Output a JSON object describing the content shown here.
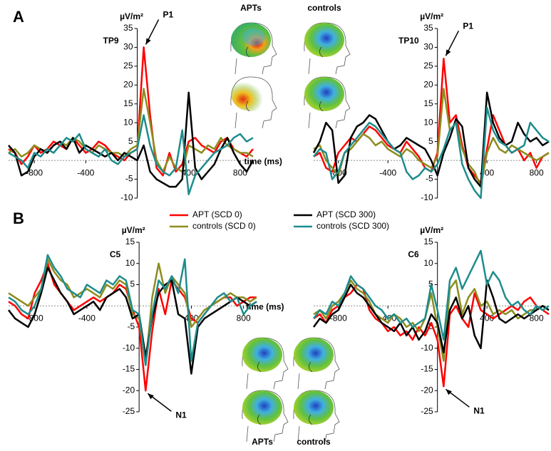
{
  "chart_data": [
    {
      "type": "line",
      "panel": "A",
      "channel": "TP9",
      "ylabel": "µV/m²",
      "xlabel": "time (ms)",
      "annotation": "P1",
      "x": [
        -1000,
        -950,
        -900,
        -850,
        -800,
        -750,
        -700,
        -650,
        -600,
        -550,
        -500,
        -450,
        -400,
        -350,
        -300,
        -250,
        -200,
        -150,
        -100,
        -50,
        0,
        50,
        100,
        150,
        200,
        250,
        300,
        350,
        400,
        450,
        500,
        550,
        600,
        650,
        700,
        750,
        800,
        850,
        900
      ],
      "xlim": [
        -1000,
        900
      ],
      "xticks": [
        -800,
        -400,
        400,
        800
      ],
      "ylim": [
        -10,
        35
      ],
      "yticks": [
        -10,
        -5,
        5,
        10,
        15,
        20,
        25,
        30,
        35
      ],
      "series": [
        {
          "color": "#ff0000",
          "values": [
            3,
            2,
            -1,
            1,
            4,
            2,
            3,
            5,
            4,
            3,
            6,
            4,
            2,
            3,
            5,
            4,
            2,
            1,
            0,
            2,
            3,
            30,
            12,
            -2,
            -4,
            2,
            -3,
            -1,
            5,
            6,
            4,
            3,
            2,
            5,
            6,
            3,
            2,
            1,
            3
          ]
        },
        {
          "color": "#8c8c1e",
          "values": [
            2,
            3,
            1,
            2,
            4,
            3,
            2,
            4,
            5,
            4,
            6,
            5,
            3,
            2,
            4,
            3,
            2,
            2,
            1,
            3,
            4,
            19,
            10,
            0,
            -3,
            1,
            -2,
            -3,
            4,
            3,
            2,
            4,
            3,
            6,
            4,
            3,
            2,
            2,
            1
          ]
        },
        {
          "color": "#000000",
          "values": [
            4,
            2,
            -4,
            -3,
            1,
            3,
            2,
            4,
            5,
            3,
            6,
            2,
            4,
            3,
            2,
            1,
            2,
            0,
            2,
            1,
            0,
            4,
            -3,
            -5,
            -6,
            -7,
            -7,
            -5,
            18,
            -2,
            -5,
            -3,
            -1,
            3,
            6,
            2,
            -1,
            -3,
            0
          ]
        },
        {
          "color": "#1e8c8c",
          "values": [
            2,
            1,
            0,
            -2,
            2,
            1,
            3,
            2,
            4,
            6,
            5,
            7,
            3,
            2,
            1,
            3,
            0,
            -1,
            1,
            2,
            3,
            12,
            4,
            -1,
            -3,
            -4,
            -2,
            8,
            -9,
            -4,
            -2,
            0,
            2,
            3,
            4,
            6,
            7,
            5,
            6
          ]
        }
      ]
    },
    {
      "type": "line",
      "channel": "TP10",
      "ylabel": "µV/m²",
      "annotation": "P1",
      "x": [
        -1000,
        -950,
        -900,
        -850,
        -800,
        -750,
        -700,
        -650,
        -600,
        -550,
        -500,
        -450,
        -400,
        -350,
        -300,
        -250,
        -200,
        -150,
        -100,
        -50,
        0,
        50,
        100,
        150,
        200,
        250,
        300,
        350,
        400,
        450,
        500,
        550,
        600,
        650,
        700,
        750,
        800,
        850,
        900
      ],
      "xlim": [
        -1000,
        900
      ],
      "xticks": [
        -800,
        -400,
        400,
        800
      ],
      "ylim": [
        -10,
        35
      ],
      "yticks": [
        -10,
        -5,
        5,
        10,
        15,
        20,
        25,
        30,
        35
      ],
      "series": [
        {
          "color": "#ff0000",
          "values": [
            1,
            2,
            -2,
            -3,
            2,
            4,
            6,
            5,
            7,
            9,
            8,
            6,
            4,
            3,
            2,
            5,
            3,
            1,
            -2,
            -3,
            2,
            27,
            10,
            12,
            4,
            -2,
            -4,
            -6,
            3,
            12,
            8,
            4,
            2,
            3,
            0,
            2,
            -2,
            1,
            2
          ]
        },
        {
          "color": "#8c8c1e",
          "values": [
            3,
            4,
            0,
            -2,
            -4,
            2,
            3,
            5,
            7,
            6,
            4,
            5,
            3,
            2,
            1,
            3,
            2,
            0,
            -1,
            -2,
            1,
            19,
            8,
            10,
            3,
            -1,
            -3,
            -7,
            2,
            6,
            3,
            2,
            4,
            3,
            2,
            1,
            0,
            1,
            2
          ]
        },
        {
          "color": "#000000",
          "values": [
            2,
            5,
            10,
            8,
            -6,
            -4,
            6,
            9,
            10,
            12,
            11,
            8,
            5,
            3,
            4,
            6,
            5,
            4,
            3,
            0,
            -4,
            2,
            6,
            11,
            9,
            -2,
            -5,
            -7,
            18,
            10,
            6,
            4,
            5,
            10,
            7,
            5,
            6,
            4,
            5
          ]
        },
        {
          "color": "#1e8c8c",
          "values": [
            1,
            3,
            2,
            -5,
            -3,
            2,
            4,
            6,
            8,
            10,
            9,
            7,
            5,
            3,
            2,
            -3,
            -5,
            -4,
            -2,
            -3,
            -1,
            3,
            8,
            10,
            -1,
            -5,
            -8,
            -10,
            14,
            8,
            5,
            4,
            2,
            3,
            4,
            10,
            8,
            6,
            5
          ]
        }
      ]
    },
    {
      "type": "line",
      "panel": "B",
      "channel": "C5",
      "ylabel": "µV/m²",
      "xlabel": "time (ms)",
      "annotation": "N1",
      "x": [
        -1000,
        -950,
        -900,
        -850,
        -800,
        -750,
        -700,
        -650,
        -600,
        -550,
        -500,
        -450,
        -400,
        -350,
        -300,
        -250,
        -200,
        -150,
        -100,
        -50,
        0,
        50,
        100,
        150,
        200,
        250,
        300,
        350,
        400,
        450,
        500,
        550,
        600,
        650,
        700,
        750,
        800,
        850,
        900
      ],
      "xlim": [
        -1000,
        900
      ],
      "xticks": [
        -800,
        -400,
        400,
        800
      ],
      "ylim": [
        -25,
        15
      ],
      "yticks": [
        -25,
        -20,
        -15,
        -10,
        -5,
        5,
        10,
        15
      ],
      "series": [
        {
          "name": "APT (SCD 0)",
          "color": "#ff0000",
          "values": [
            1,
            0,
            -2,
            -3,
            3,
            6,
            10,
            5,
            3,
            1,
            -1,
            0,
            1,
            2,
            1,
            2,
            3,
            5,
            4,
            -1,
            -5,
            -20,
            -6,
            4,
            -2,
            6,
            4,
            2,
            -3,
            -4,
            -2,
            0,
            1,
            2,
            2,
            0,
            1,
            2,
            2
          ]
        },
        {
          "name": "controls (SCD 0)",
          "color": "#8c8c1e",
          "values": [
            3,
            2,
            1,
            0,
            2,
            4,
            11,
            8,
            6,
            5,
            2,
            3,
            4,
            3,
            2,
            5,
            4,
            6,
            5,
            -2,
            -3,
            -14,
            2,
            10,
            3,
            7,
            5,
            3,
            -5,
            -3,
            -1,
            0,
            1,
            2,
            3,
            2,
            2,
            1,
            2
          ]
        },
        {
          "name": "APT (SCD 300)",
          "color": "#000000",
          "values": [
            -1,
            -3,
            -4,
            -5,
            -2,
            3,
            9,
            6,
            3,
            1,
            -2,
            -1,
            0,
            1,
            -1,
            2,
            3,
            4,
            2,
            -3,
            -2,
            -12,
            -3,
            3,
            5,
            6,
            -2,
            -3,
            -16,
            -5,
            -3,
            -2,
            -1,
            0,
            1,
            2,
            1,
            0,
            1
          ]
        },
        {
          "name": "controls (SCD 300)",
          "color": "#1e8c8c",
          "values": [
            2,
            1,
            -1,
            -2,
            0,
            4,
            12,
            9,
            7,
            4,
            3,
            2,
            5,
            4,
            3,
            6,
            5,
            7,
            6,
            -1,
            -2,
            -14,
            -2,
            6,
            4,
            7,
            3,
            11,
            -13,
            -4,
            -2,
            0,
            2,
            3,
            1,
            2,
            -2,
            0,
            1
          ]
        }
      ]
    },
    {
      "type": "line",
      "channel": "C6",
      "ylabel": "µV/m²",
      "annotation": "N1",
      "x": [
        -1000,
        -950,
        -900,
        -850,
        -800,
        -750,
        -700,
        -650,
        -600,
        -550,
        -500,
        -450,
        -400,
        -350,
        -300,
        -250,
        -200,
        -150,
        -100,
        -50,
        0,
        50,
        100,
        150,
        200,
        250,
        300,
        350,
        400,
        450,
        500,
        550,
        600,
        650,
        700,
        750,
        800,
        850,
        900
      ],
      "xlim": [
        -1000,
        900
      ],
      "xticks": [
        -800,
        -400,
        400,
        800
      ],
      "ylim": [
        -25,
        15
      ],
      "yticks": [
        -25,
        -20,
        -15,
        -10,
        -5,
        5,
        10,
        15
      ],
      "series": [
        {
          "color": "#ff0000",
          "values": [
            -3,
            -2,
            -4,
            -1,
            0,
            2,
            3,
            5,
            4,
            -1,
            -3,
            -4,
            -6,
            -5,
            -7,
            -6,
            -8,
            -5,
            -7,
            -4,
            -8,
            -19,
            -2,
            0,
            -3,
            -5,
            3,
            -1,
            -2,
            -3,
            -2,
            -1,
            0,
            -1,
            1,
            2,
            0,
            -1,
            -2
          ]
        },
        {
          "color": "#8c8c1e",
          "values": [
            -2,
            -1,
            -3,
            0,
            1,
            3,
            6,
            4,
            3,
            1,
            -2,
            -3,
            -4,
            -2,
            -3,
            -5,
            -4,
            -6,
            -3,
            3,
            -5,
            -13,
            4,
            6,
            -2,
            2,
            4,
            0,
            1,
            -2,
            -1,
            -2,
            -1,
            -3,
            -2,
            -1,
            -1,
            0,
            -1
          ]
        },
        {
          "color": "#000000",
          "values": [
            -5,
            -3,
            -4,
            -2,
            -1,
            2,
            5,
            3,
            2,
            0,
            -2,
            -4,
            -5,
            -6,
            -4,
            -7,
            -5,
            -8,
            -6,
            -2,
            -4,
            -11,
            -1,
            2,
            -3,
            0,
            -7,
            -10,
            6,
            2,
            -3,
            -4,
            -3,
            -2,
            -3,
            -2,
            -1,
            0,
            -1
          ]
        },
        {
          "color": "#1e8c8c",
          "values": [
            -3,
            -1,
            -2,
            1,
            0,
            3,
            7,
            5,
            4,
            2,
            0,
            -1,
            -3,
            -2,
            -4,
            -3,
            -5,
            -4,
            -3,
            5,
            -1,
            -8,
            6,
            9,
            4,
            7,
            10,
            13,
            5,
            8,
            6,
            2,
            0,
            1,
            -1,
            -2,
            0,
            -1,
            0
          ]
        }
      ]
    }
  ],
  "topomaps": [
    {
      "labels": [
        "APTs",
        "controls"
      ]
    },
    {
      "labels": [
        "APTs",
        "controls"
      ]
    }
  ]
}
